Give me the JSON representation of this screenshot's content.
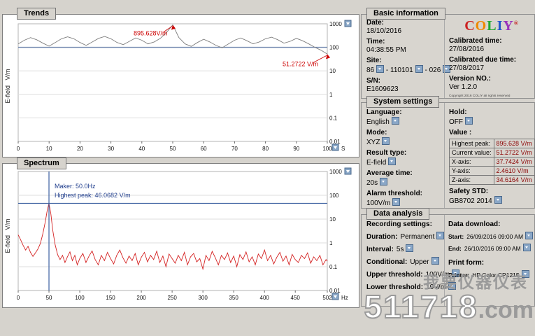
{
  "tabs": {
    "trends": "Trends",
    "spectrum": "Spectrum",
    "basic_information": "Basic information",
    "system_settings": "System settings",
    "data_analysis": "Data analysis"
  },
  "logo": {
    "letters": [
      {
        "ch": "C",
        "color": "#cc2222"
      },
      {
        "ch": "O",
        "color": "#ee8800"
      },
      {
        "ch": "L",
        "color": "#22aa33"
      },
      {
        "ch": "I",
        "color": "#2255cc"
      },
      {
        "ch": "Y",
        "color": "#9933bb"
      }
    ],
    "registered": "®",
    "copyright": "Copyright 2016 COLIY all rights reserved"
  },
  "basic_information": {
    "date_label": "Date:",
    "date": "18/10/2016",
    "time_label": "Time:",
    "time": "04:38:55 PM",
    "site_label": "Site:",
    "site_parts": [
      "86",
      "110101",
      "026"
    ],
    "site_separator": "-",
    "sn_label": "S/N:",
    "sn": "E1609623",
    "calibrated_time_label": "Calibrated time:",
    "calibrated_time": "27/08/2016",
    "calibrated_due_label": "Calibrated due time:",
    "calibrated_due": "27/08/2017",
    "version_label": "Version NO.:",
    "version": "Ver 1.2.0"
  },
  "system_settings": {
    "language_label": "Language:",
    "language": "English",
    "mode_label": "Mode:",
    "mode": "XYZ",
    "result_type_label": "Result type:",
    "result_type": "E-field",
    "average_time_label": "Average time:",
    "average_time": "20s",
    "alarm_threshold_label": "Alarm threshold:",
    "alarm_threshold": "100V/m",
    "hold_label": "Hold:",
    "hold": "OFF",
    "value_label": "Value :",
    "value_table": [
      {
        "label": "Highest peak:",
        "value": "895.628 V/m"
      },
      {
        "label": "Current value:",
        "value": "51.2722 V/m"
      },
      {
        "label": "X-axis:",
        "value": "37.7424 V/m"
      },
      {
        "label": "Y-axis:",
        "value": "2.4610 V/m"
      },
      {
        "label": "Z-axis:",
        "value": "34.6164 V/m"
      }
    ],
    "safety_std_label": "Safety STD:",
    "safety_std": "GB8702 2014"
  },
  "data_analysis": {
    "recording_settings_label": "Recording settings:",
    "duration_label": "Duration:",
    "duration": "Permanent",
    "interval_label": "Interval:",
    "interval": "5s",
    "conditional_label": "Conditional:",
    "conditional": "Upper",
    "upper_threshold_label": "Upper threshold:",
    "upper_threshold": "100V/m",
    "lower_threshold_label": "Lower threshold:",
    "lower_threshold": "10V/m",
    "data_download_label": "Data download:",
    "start_label": "Start:",
    "start": "26/09/2016 09:00 AM",
    "end_label": "End:",
    "end": "26/10/2016 09:00 AM",
    "print_form_label": "Print form:",
    "printer_label": "Printer:",
    "printer": "HP Color CP1215"
  },
  "watermark": {
    "line1": "我要仪器仪表",
    "big": "511718",
    "suffix": ".com"
  },
  "chart_data": [
    {
      "name": "trends",
      "type": "line",
      "title": "Trends",
      "ylabel": "E-field   V/m",
      "xunit": "S",
      "xlim": [
        0,
        100
      ],
      "xticks": [
        0,
        10,
        20,
        30,
        40,
        50,
        60,
        70,
        80,
        90,
        100
      ],
      "yscale": "log",
      "ylim": [
        0.01,
        1000
      ],
      "yticks": [
        1000,
        100,
        10,
        1,
        0.1,
        0.01
      ],
      "grid": true,
      "threshold_line": 100,
      "marker_color": "#cc0000",
      "markers": [
        {
          "x": 50,
          "y": 895.628,
          "label": "895.628V/m"
        },
        {
          "x": 100,
          "y": 51.2722,
          "label": "51.2722 V/m"
        }
      ],
      "series": [
        {
          "name": "e-field-trend-line",
          "color": "#7d7d7d",
          "points": [
            [
              0,
              140
            ],
            [
              2,
              200
            ],
            [
              4,
              260
            ],
            [
              6,
              210
            ],
            [
              8,
              150
            ],
            [
              10,
              112
            ],
            [
              12,
              160
            ],
            [
              14,
              230
            ],
            [
              16,
              280
            ],
            [
              18,
              230
            ],
            [
              20,
              160
            ],
            [
              22,
              120
            ],
            [
              24,
              170
            ],
            [
              26,
              240
            ],
            [
              28,
              290
            ],
            [
              30,
              230
            ],
            [
              32,
              160
            ],
            [
              34,
              130
            ],
            [
              36,
              180
            ],
            [
              38,
              250
            ],
            [
              40,
              200
            ],
            [
              42,
              140
            ],
            [
              44,
              170
            ],
            [
              46,
              240
            ],
            [
              48,
              430
            ],
            [
              50,
              895.628
            ],
            [
              52,
              260
            ],
            [
              54,
              140
            ],
            [
              56,
              110
            ],
            [
              58,
              160
            ],
            [
              60,
              220
            ],
            [
              62,
              170
            ],
            [
              64,
              120
            ],
            [
              66,
              95
            ],
            [
              68,
              140
            ],
            [
              70,
              200
            ],
            [
              72,
              250
            ],
            [
              74,
              190
            ],
            [
              76,
              140
            ],
            [
              78,
              170
            ],
            [
              80,
              230
            ],
            [
              82,
              270
            ],
            [
              84,
              210
            ],
            [
              86,
              150
            ],
            [
              88,
              180
            ],
            [
              90,
              240
            ],
            [
              92,
              190
            ],
            [
              94,
              140
            ],
            [
              96,
              100
            ],
            [
              98,
              75
            ],
            [
              100,
              51.2722
            ]
          ]
        }
      ]
    },
    {
      "name": "spectrum",
      "type": "line",
      "title": "Spectrum",
      "ylabel": "E-field   V/m",
      "xunit": "Hz",
      "xlim": [
        0,
        502
      ],
      "xticks": [
        0,
        50,
        100,
        150,
        200,
        250,
        300,
        350,
        400,
        450,
        502
      ],
      "yscale": "log",
      "ylim": [
        0.01,
        1000
      ],
      "yticks": [
        1000,
        100,
        10,
        1,
        0.1,
        0.01
      ],
      "grid": true,
      "vline": 50,
      "hline": 46.0682,
      "annotations": [
        "Maker: 50.0Hz",
        "Highest peak: 46.0682 V/m"
      ],
      "series": [
        {
          "name": "e-field-spectrum-line",
          "color": "#d42222",
          "points": [
            [
              0,
              2.2
            ],
            [
              4,
              1.35
            ],
            [
              8,
              0.8
            ],
            [
              12,
              0.5
            ],
            [
              16,
              0.72
            ],
            [
              20,
              0.4
            ],
            [
              24,
              0.27
            ],
            [
              28,
              0.38
            ],
            [
              32,
              0.55
            ],
            [
              36,
              0.95
            ],
            [
              40,
              2.4
            ],
            [
              44,
              7.5
            ],
            [
              47,
              22
            ],
            [
              50,
              46.0682
            ],
            [
              53,
              17
            ],
            [
              56,
              3.6
            ],
            [
              60,
              0.85
            ],
            [
              64,
              0.32
            ],
            [
              68,
              0.2
            ],
            [
              72,
              0.3
            ],
            [
              76,
              0.15
            ],
            [
              80,
              0.26
            ],
            [
              84,
              0.42
            ],
            [
              88,
              0.18
            ],
            [
              92,
              0.3
            ],
            [
              96,
              0.12
            ],
            [
              100,
              0.22
            ],
            [
              105,
              0.36
            ],
            [
              110,
              0.15
            ],
            [
              115,
              0.28
            ],
            [
              120,
              0.46
            ],
            [
              125,
              0.2
            ],
            [
              130,
              0.12
            ],
            [
              135,
              0.3
            ],
            [
              140,
              0.18
            ],
            [
              145,
              0.4
            ],
            [
              150,
              0.22
            ],
            [
              155,
              0.13
            ],
            [
              160,
              0.3
            ],
            [
              165,
              0.5
            ],
            [
              170,
              0.24
            ],
            [
              175,
              0.14
            ],
            [
              180,
              0.28
            ],
            [
              185,
              0.18
            ],
            [
              190,
              0.36
            ],
            [
              195,
              0.12
            ],
            [
              200,
              0.25
            ],
            [
              205,
              0.4
            ],
            [
              210,
              0.16
            ],
            [
              215,
              0.3
            ],
            [
              220,
              0.2
            ],
            [
              225,
              0.45
            ],
            [
              230,
              0.15
            ],
            [
              235,
              0.28
            ],
            [
              240,
              0.1
            ],
            [
              245,
              0.34
            ],
            [
              250,
              0.22
            ],
            [
              255,
              0.14
            ],
            [
              260,
              0.3
            ],
            [
              265,
              0.18
            ],
            [
              270,
              0.4
            ],
            [
              275,
              0.12
            ],
            [
              280,
              0.26
            ],
            [
              285,
              0.36
            ],
            [
              290,
              0.16
            ],
            [
              295,
              0.22
            ],
            [
              300,
              0.08
            ],
            [
              305,
              0.3
            ],
            [
              310,
              0.18
            ],
            [
              315,
              0.44
            ],
            [
              320,
              0.24
            ],
            [
              325,
              0.12
            ],
            [
              330,
              0.3
            ],
            [
              335,
              0.2
            ],
            [
              340,
              0.38
            ],
            [
              345,
              0.15
            ],
            [
              350,
              0.28
            ],
            [
              355,
              0.1
            ],
            [
              360,
              0.32
            ],
            [
              365,
              0.2
            ],
            [
              370,
              0.42
            ],
            [
              375,
              0.16
            ],
            [
              380,
              0.26
            ],
            [
              385,
              0.12
            ],
            [
              390,
              0.34
            ],
            [
              395,
              0.22
            ],
            [
              400,
              0.5
            ],
            [
              405,
              0.18
            ],
            [
              410,
              0.3
            ],
            [
              415,
              0.13
            ],
            [
              420,
              0.25
            ],
            [
              425,
              0.4
            ],
            [
              430,
              0.17
            ],
            [
              435,
              0.28
            ],
            [
              440,
              0.12
            ],
            [
              445,
              0.33
            ],
            [
              450,
              0.2
            ],
            [
              455,
              0.15
            ],
            [
              460,
              0.3
            ],
            [
              465,
              0.22
            ],
            [
              470,
              0.38
            ],
            [
              475,
              0.14
            ],
            [
              480,
              0.26
            ],
            [
              485,
              0.18
            ],
            [
              490,
              0.3
            ],
            [
              495,
              0.12
            ],
            [
              500,
              0.2
            ],
            [
              502,
              0.17
            ]
          ]
        }
      ]
    }
  ]
}
